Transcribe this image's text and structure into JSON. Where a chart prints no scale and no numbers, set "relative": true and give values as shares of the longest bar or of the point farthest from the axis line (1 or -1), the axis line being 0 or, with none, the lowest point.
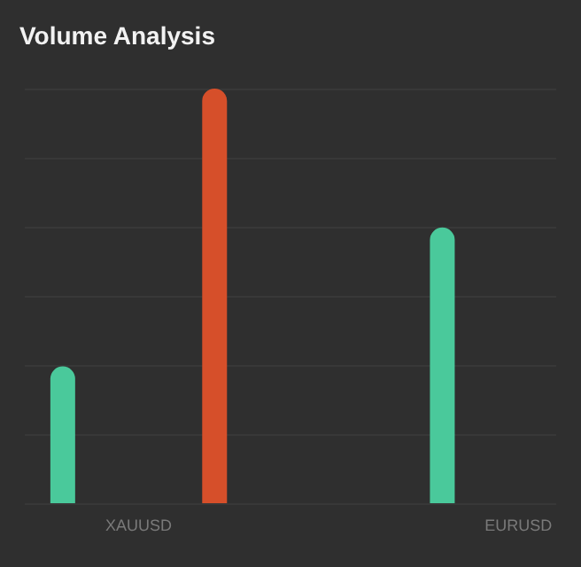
{
  "chart_data": {
    "type": "bar",
    "title": "Volume Analysis",
    "categories": [
      null,
      "XAUUSD",
      null,
      null,
      null,
      null,
      "EURUSD"
    ],
    "values": [
      0.33,
      null,
      1,
      null,
      null,
      0.665,
      null
    ],
    "colors": [
      "#4ac99b",
      null,
      "#d64f2a",
      null,
      null,
      "#4ac99b",
      null
    ],
    "relative": true,
    "grid": "y"
  }
}
